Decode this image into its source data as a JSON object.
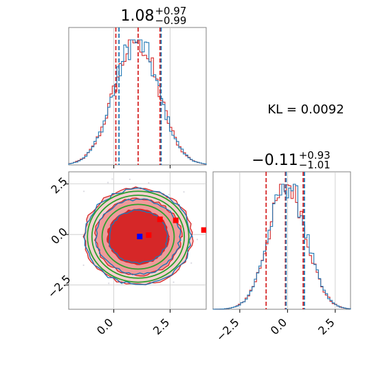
{
  "chart_data": {
    "type": "corner",
    "annotation": "KL = 0.0092",
    "colors": {
      "red": "#d62728",
      "blue": "#1f77b4",
      "green": "#2ca02c",
      "point_red": "#ff0000",
      "point_blue": "#0000ff"
    },
    "panels": [
      {
        "name": "param1-histogram",
        "type": "histogram",
        "title": {
          "base": "1.08",
          "plus": "+0.97",
          "minus": "−0.99"
        },
        "xlim": [
          -2.0,
          4.1
        ],
        "red_quantiles": [
          0.09,
          1.08,
          2.05
        ],
        "blue_quantiles": [
          0.2,
          2.07
        ],
        "peak_x": 1.0,
        "sigma": 0.98,
        "grid": true
      },
      {
        "name": "param2-histogram",
        "type": "histogram",
        "title": {
          "base": "−0.11",
          "plus": "+0.93",
          "minus": "−1.01"
        },
        "xlim": [
          -3.9,
          3.3
        ],
        "xticks": [
          -2.5,
          0.0,
          2.5
        ],
        "xtick_labels": [
          "−2.5",
          "0.0",
          "2.5"
        ],
        "red_quantiles": [
          -1.12,
          -0.11,
          0.82
        ],
        "blue_quantiles": [
          -0.11,
          0.85
        ],
        "peak_x": 0.0,
        "sigma": 0.98,
        "grid": true
      },
      {
        "name": "joint-contour",
        "type": "contour",
        "xlim": [
          -2.0,
          4.1
        ],
        "ylim": [
          -3.7,
          3.1
        ],
        "xticks": [
          0.0,
          2.5
        ],
        "xtick_labels": [
          "0.0",
          "2.5"
        ],
        "yticks": [
          2.5,
          0.0,
          -2.5
        ],
        "ytick_labels": [
          "2.5",
          "0.0",
          "−2.5"
        ],
        "center": {
          "x": 1.08,
          "y": -0.11
        },
        "markers": [
          {
            "x": 1.15,
            "y": -0.1,
            "color": "blue"
          },
          {
            "x": 1.55,
            "y": -0.03,
            "color": "red"
          },
          {
            "x": 2.05,
            "y": 0.75,
            "color": "red"
          },
          {
            "x": 4.0,
            "y": 0.22,
            "color": "red"
          },
          {
            "x": 2.75,
            "y": 0.7,
            "color": "red"
          }
        ],
        "grid": true
      }
    ]
  }
}
